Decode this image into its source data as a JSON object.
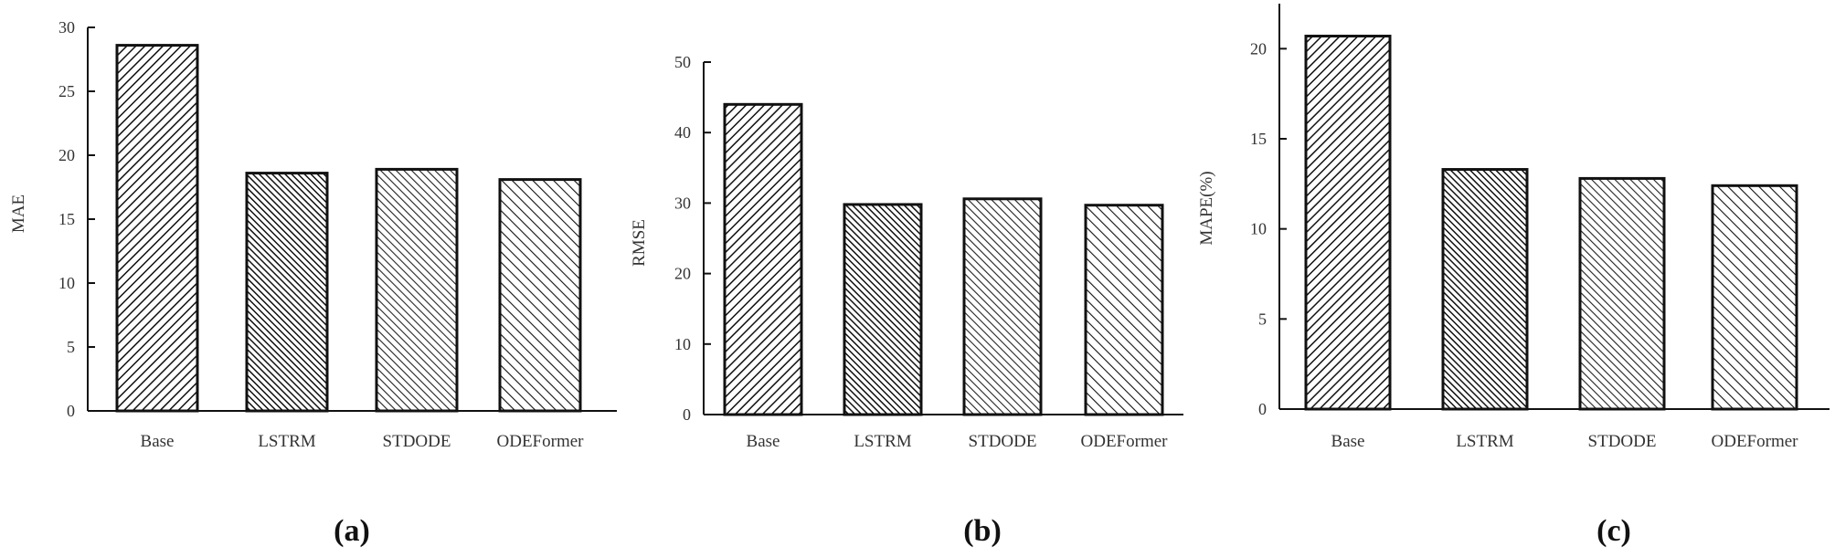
{
  "chart_data": [
    {
      "type": "bar",
      "panel_label": "(a)",
      "ylabel": "MAE",
      "ylim": [
        0,
        30
      ],
      "yticks": [
        0,
        5,
        10,
        15,
        20,
        25,
        30
      ],
      "categories": [
        "Base",
        "LSTRM",
        "STDODE",
        "ODEFormer"
      ],
      "category_labels": [
        "Base",
        "LSTRM",
        "STDODE",
        "ODEFormer"
      ],
      "values": [
        28.6,
        18.6,
        18.9,
        18.1
      ]
    },
    {
      "type": "bar",
      "panel_label": "(b)",
      "ylabel": "RMSE",
      "ylim": [
        0,
        50
      ],
      "yticks": [
        0,
        10,
        20,
        30,
        40,
        50
      ],
      "categories": [
        "Base",
        "LSTRM",
        "STDODE",
        "ODEFormer"
      ],
      "category_labels": [
        "Base",
        "LSTRM",
        "STDODE",
        "ODEFormer"
      ],
      "values": [
        44.0,
        29.8,
        30.6,
        29.7
      ]
    },
    {
      "type": "bar",
      "panel_label": "(c)",
      "ylabel": "MAPE(%)",
      "ylim": [
        0,
        22.5
      ],
      "yticks": [
        0,
        5,
        10,
        15,
        20
      ],
      "categories": [
        "Base",
        "LSTRM",
        "STDODE",
        "ODEFormer"
      ],
      "category_labels": [
        "Base",
        "LSTRM",
        "STDODE",
        "ODEFormer"
      ],
      "values": [
        20.7,
        13.3,
        12.8,
        12.4
      ]
    }
  ]
}
